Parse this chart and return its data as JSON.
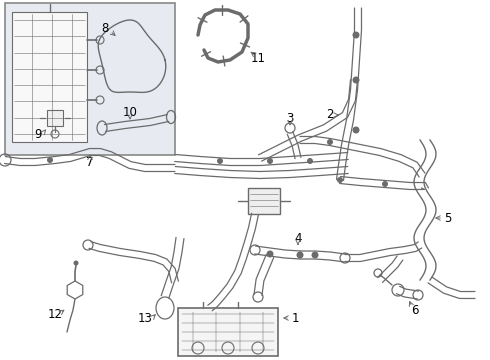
{
  "bg_color": "#ffffff",
  "line_color": "#6b6b6b",
  "label_color": "#000000",
  "inset_bg": "#e8eaf2",
  "inset_border": "#999999",
  "font_size": 8.5,
  "lw_tube": 1.3,
  "lw_detail": 0.9
}
